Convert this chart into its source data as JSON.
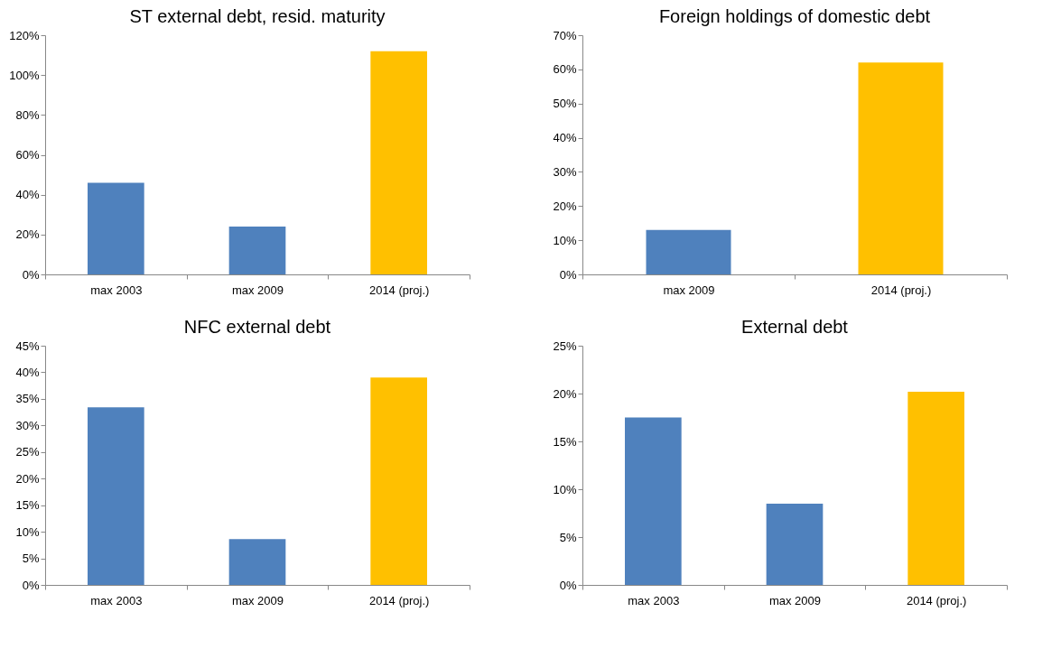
{
  "chart_data": [
    {
      "type": "bar",
      "title": "ST external debt, resid. maturity",
      "categories": [
        "max 2003",
        "max 2009",
        "2014 (proj.)"
      ],
      "values": [
        46,
        24,
        112
      ],
      "colors": [
        "#4f81bd",
        "#4f81bd",
        "#ffc000"
      ],
      "ylim": [
        0,
        120
      ],
      "yticks": [
        {
          "value": 0,
          "label": "0%"
        },
        {
          "value": 20,
          "label": "20%"
        },
        {
          "value": 40,
          "label": "40%"
        },
        {
          "value": 60,
          "label": "60%"
        },
        {
          "value": 80,
          "label": "80%"
        },
        {
          "value": 100,
          "label": "100%"
        },
        {
          "value": 120,
          "label": "120%"
        }
      ]
    },
    {
      "type": "bar",
      "title": "Foreign holdings of domestic debt",
      "categories": [
        "max 2009",
        "2014 (proj.)"
      ],
      "values": [
        13,
        62
      ],
      "colors": [
        "#4f81bd",
        "#ffc000"
      ],
      "ylim": [
        0,
        70
      ],
      "yticks": [
        {
          "value": 0,
          "label": "0%"
        },
        {
          "value": 10,
          "label": "10%"
        },
        {
          "value": 20,
          "label": "20%"
        },
        {
          "value": 30,
          "label": "30%"
        },
        {
          "value": 40,
          "label": "40%"
        },
        {
          "value": 50,
          "label": "50%"
        },
        {
          "value": 60,
          "label": "60%"
        },
        {
          "value": 70,
          "label": "70%"
        }
      ]
    },
    {
      "type": "bar",
      "title": "NFC external debt",
      "categories": [
        "max 2003",
        "max 2009",
        "2014 (proj.)"
      ],
      "values": [
        33.4,
        8.6,
        39
      ],
      "colors": [
        "#4f81bd",
        "#4f81bd",
        "#ffc000"
      ],
      "ylim": [
        0,
        45
      ],
      "yticks": [
        {
          "value": 0,
          "label": "0%"
        },
        {
          "value": 5,
          "label": "5%"
        },
        {
          "value": 10,
          "label": "10%"
        },
        {
          "value": 15,
          "label": "15%"
        },
        {
          "value": 20,
          "label": "20%"
        },
        {
          "value": 25,
          "label": "25%"
        },
        {
          "value": 30,
          "label": "30%"
        },
        {
          "value": 35,
          "label": "35%"
        },
        {
          "value": 40,
          "label": "40%"
        },
        {
          "value": 45,
          "label": "45%"
        }
      ]
    },
    {
      "type": "bar",
      "title": "External debt",
      "categories": [
        "max 2003",
        "max 2009",
        "2014 (proj.)"
      ],
      "values": [
        17.5,
        8.5,
        20.2
      ],
      "colors": [
        "#4f81bd",
        "#4f81bd",
        "#ffc000"
      ],
      "ylim": [
        0,
        25
      ],
      "yticks": [
        {
          "value": 0,
          "label": "0%"
        },
        {
          "value": 5,
          "label": "5%"
        },
        {
          "value": 10,
          "label": "10%"
        },
        {
          "value": 15,
          "label": "15%"
        },
        {
          "value": 20,
          "label": "20%"
        },
        {
          "value": 25,
          "label": "25%"
        }
      ]
    }
  ]
}
